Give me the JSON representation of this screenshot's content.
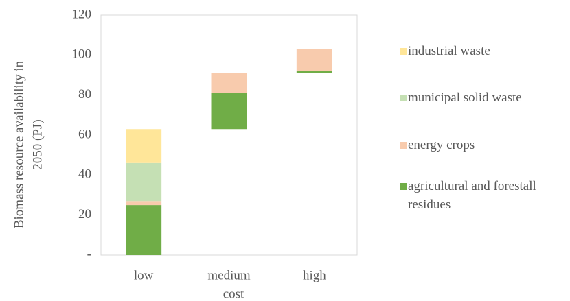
{
  "chart_data": {
    "type": "bar",
    "stacking": "waterfall",
    "categories": [
      "low",
      "medium",
      "high"
    ],
    "xlabel": "cost",
    "ylabel": "Biomass resource availability in 2050 (PJ)",
    "series": [
      {
        "name": "agricultural and forestall residues",
        "color": "#70ad47",
        "values": [
          25,
          18,
          1
        ]
      },
      {
        "name": "energy crops",
        "color": "#f8cbad",
        "values": [
          2,
          10,
          11
        ]
      },
      {
        "name": "municipal solid waste",
        "color": "#c5e0b4",
        "values": [
          19,
          0,
          0
        ]
      },
      {
        "name": "industrial waste",
        "color": "#ffe699",
        "values": [
          17,
          0,
          0
        ]
      }
    ],
    "ylim": [
      0,
      120
    ],
    "yticks": [
      {
        "value": 0,
        "label": "-"
      },
      20,
      40,
      60,
      80,
      100,
      120
    ],
    "grid": false,
    "legend": "right"
  }
}
